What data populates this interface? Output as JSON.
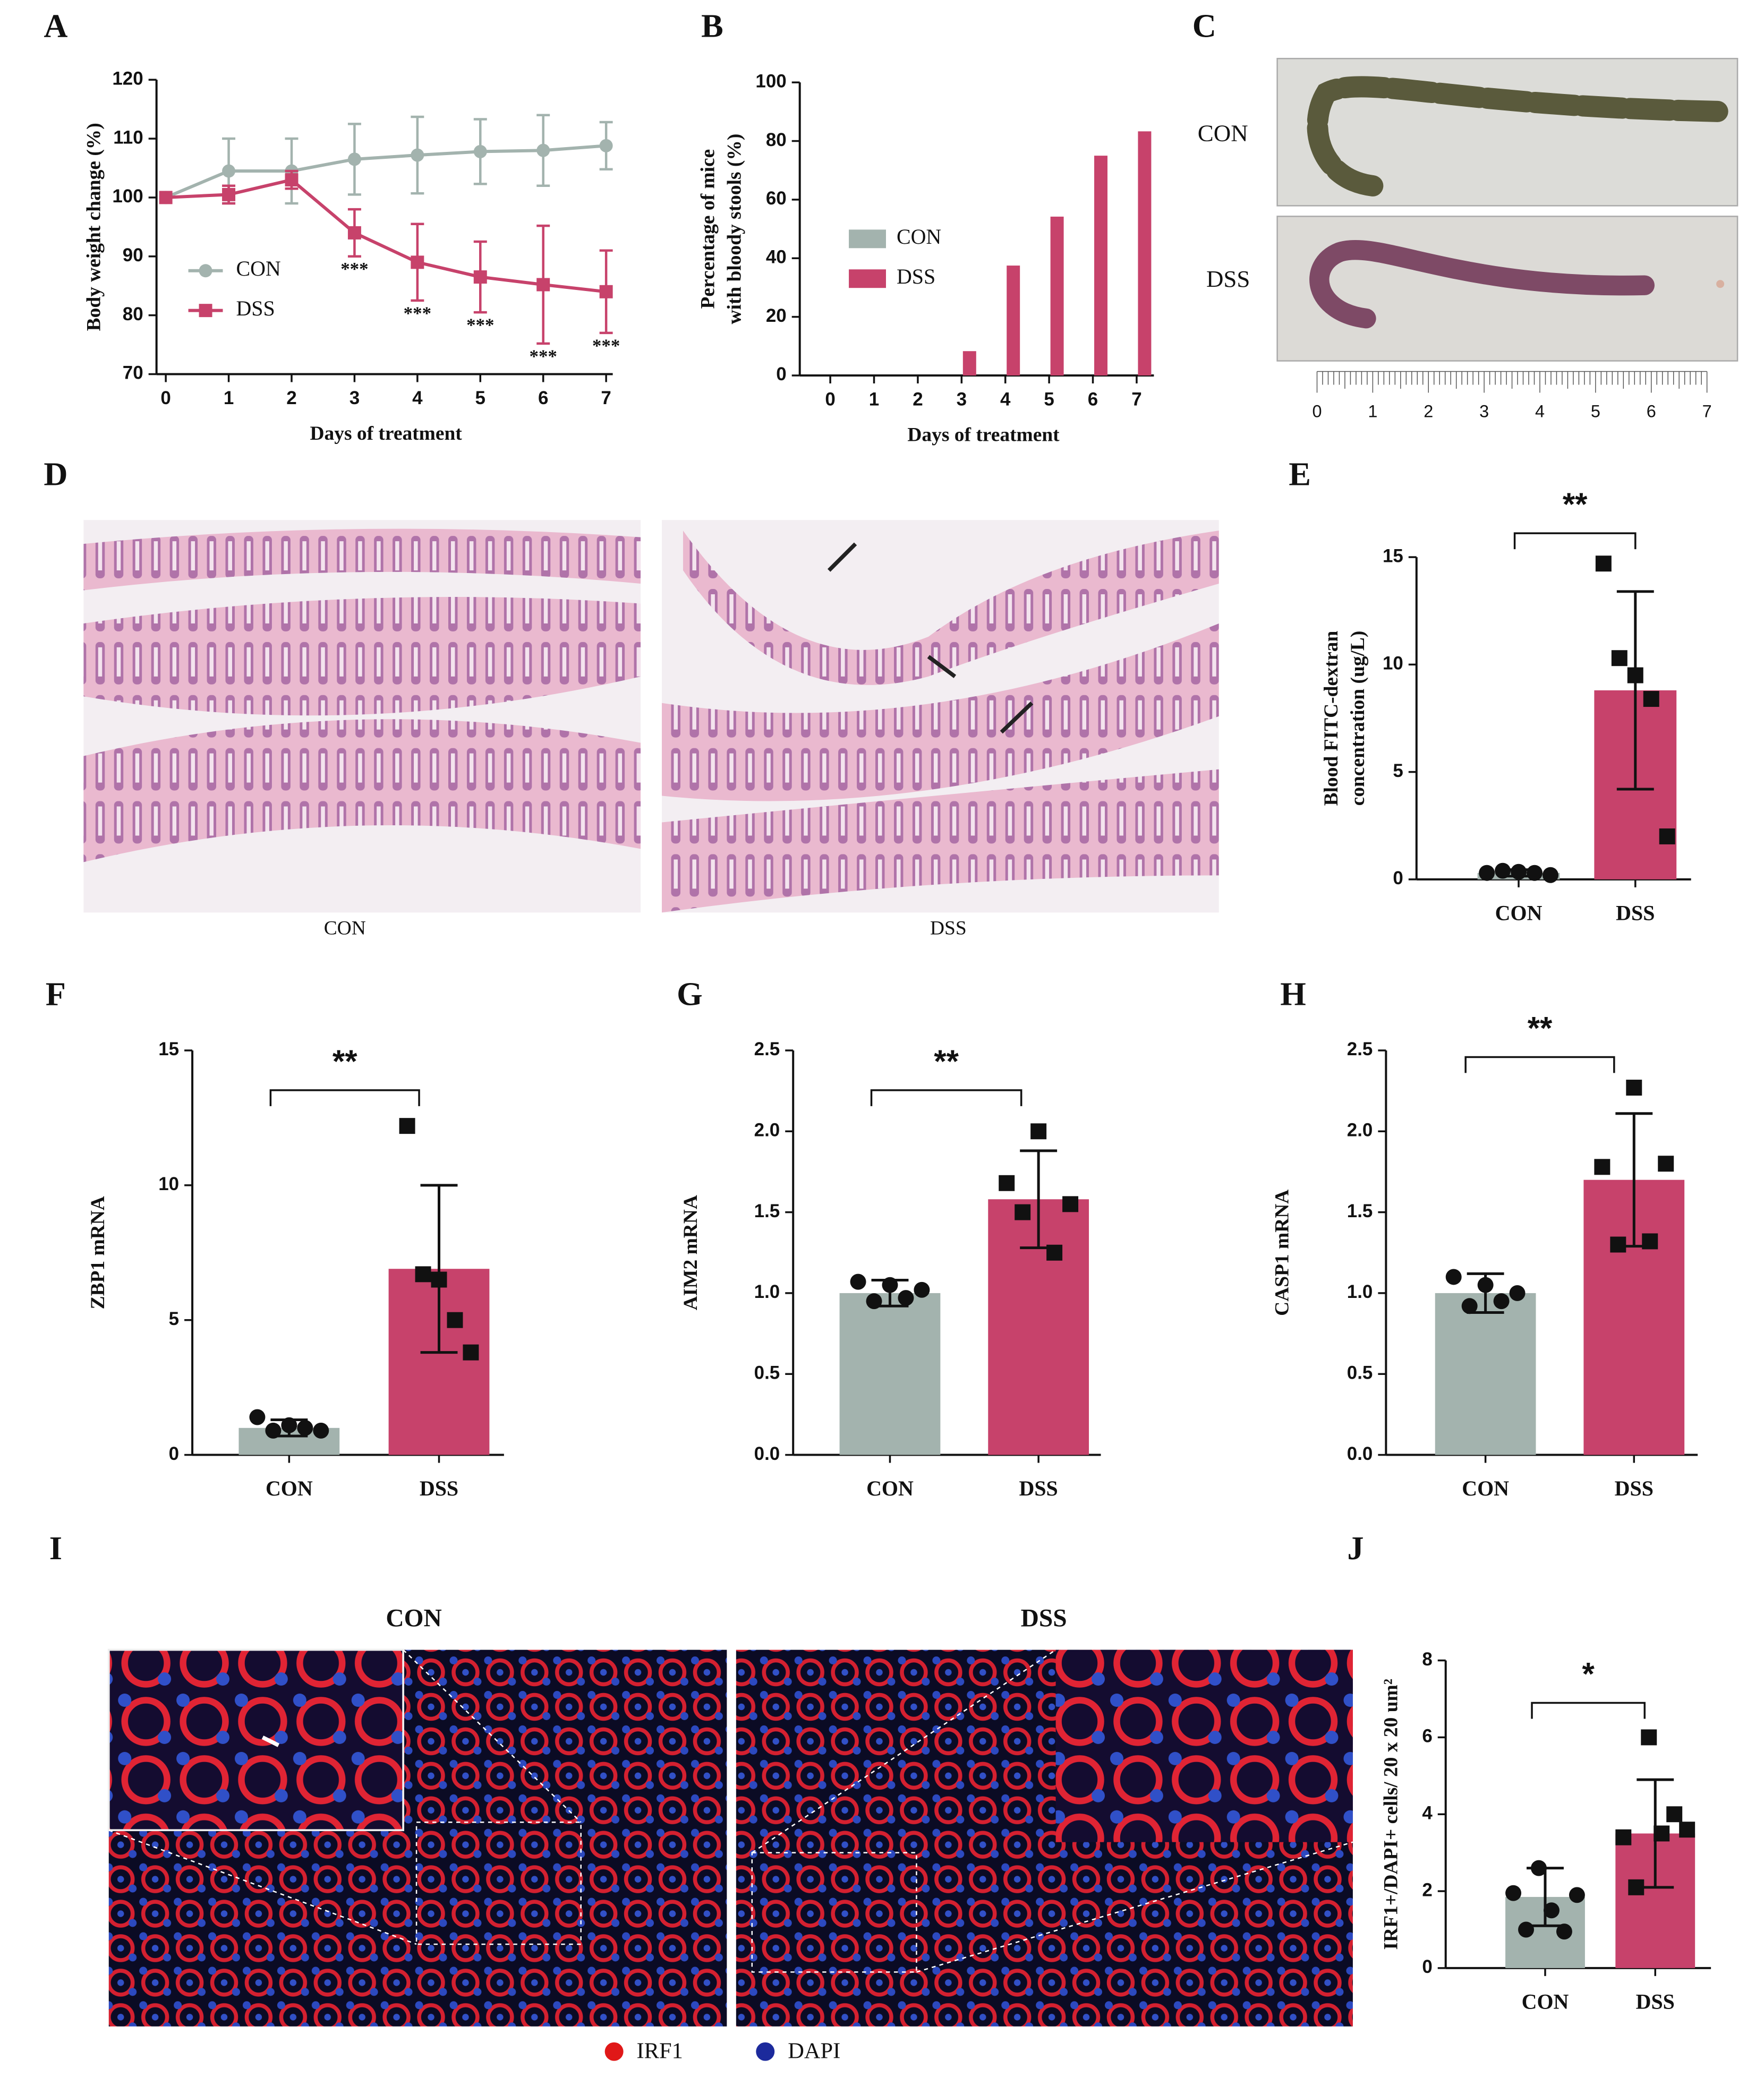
{
  "chart_data": [
    {
      "type": "line",
      "label": "A",
      "xlabel": "Days of treatment",
      "ylabel": "Body weight change (%)",
      "x": [
        0,
        1,
        2,
        3,
        4,
        5,
        6,
        7
      ],
      "xlim": [
        0,
        7
      ],
      "xticks": [
        0,
        1,
        2,
        3,
        4,
        5,
        6,
        7
      ],
      "ylim": [
        70,
        120
      ],
      "yticks": [
        70,
        80,
        90,
        100,
        110,
        120
      ],
      "legend": "lower left",
      "series": [
        {
          "name": "CON",
          "color": "#a3b3ae",
          "marker": "circle",
          "values": [
            100,
            104.5,
            104.5,
            106.5,
            107.2,
            107.8,
            108,
            108.8
          ],
          "errors": [
            0,
            5.5,
            5.5,
            6,
            6.5,
            5.5,
            6,
            4
          ]
        },
        {
          "name": "DSS",
          "color": "#c7426b",
          "marker": "square",
          "values": [
            100,
            100.5,
            103,
            94,
            89,
            86.5,
            85.2,
            84
          ],
          "errors": [
            0,
            1.5,
            1.5,
            4,
            6.5,
            6,
            10,
            7
          ],
          "annotations": [
            null,
            null,
            null,
            "***",
            "***",
            "***",
            "***",
            "***"
          ]
        }
      ]
    },
    {
      "type": "bar",
      "label": "B",
      "xlabel": "Days of treatment",
      "ylabel": [
        "Percentage of mice",
        "with bloody stools (%)"
      ],
      "x": [
        0,
        1,
        2,
        3,
        4,
        5,
        6,
        7
      ],
      "xlim": [
        0,
        7
      ],
      "xticks": [
        0,
        1,
        2,
        3,
        4,
        5,
        6,
        7
      ],
      "ylim": [
        0,
        100
      ],
      "yticks": [
        0,
        20,
        40,
        60,
        80,
        100
      ],
      "legend": "center left",
      "series": [
        {
          "name": "CON",
          "color": "#a3b3ae",
          "values": [
            0,
            0,
            0,
            0,
            0,
            0,
            0,
            0
          ]
        },
        {
          "name": "DSS",
          "color": "#c7426b",
          "values": [
            0,
            0,
            0,
            8.3,
            37.5,
            54.2,
            75,
            83.3
          ]
        }
      ]
    },
    {
      "type": "dotbar",
      "label": "E",
      "ylabel": [
        "Blood FITC-dextran",
        "concentration (ug/L)"
      ],
      "categories": [
        "CON",
        "DSS"
      ],
      "colors": [
        "#a3b3ae",
        "#c7426b"
      ],
      "markers": [
        "circle",
        "square"
      ],
      "values": [
        0.3,
        8.8
      ],
      "errors": [
        0.15,
        4.6
      ],
      "points": [
        [
          0.3,
          0.4,
          0.35,
          0.3,
          0.2
        ],
        [
          14.7,
          10.3,
          9.5,
          8.4,
          2.0
        ]
      ],
      "significance": "**",
      "ylim": [
        0,
        15
      ],
      "yticks": [
        0,
        5,
        10,
        15
      ]
    },
    {
      "type": "dotbar",
      "label": "F",
      "ylabel": "ZBP1 mRNA",
      "categories": [
        "CON",
        "DSS"
      ],
      "colors": [
        "#a3b3ae",
        "#c7426b"
      ],
      "markers": [
        "circle",
        "square"
      ],
      "values": [
        1.0,
        6.9
      ],
      "errors": [
        0.3,
        3.1
      ],
      "points": [
        [
          1.4,
          0.9,
          1.1,
          1.0,
          0.9
        ],
        [
          12.2,
          6.7,
          6.5,
          5.0,
          3.8
        ]
      ],
      "significance": "**",
      "ylim": [
        0,
        15
      ],
      "yticks": [
        0,
        5,
        10,
        15
      ]
    },
    {
      "type": "dotbar",
      "label": "G",
      "ylabel": "AIM2 mRNA",
      "categories": [
        "CON",
        "DSS"
      ],
      "colors": [
        "#a3b3ae",
        "#c7426b"
      ],
      "markers": [
        "circle",
        "square"
      ],
      "values": [
        1.0,
        1.58
      ],
      "errors": [
        0.08,
        0.3
      ],
      "points": [
        [
          1.07,
          0.95,
          1.05,
          0.97,
          1.02
        ],
        [
          1.68,
          1.5,
          2.0,
          1.25,
          1.55
        ]
      ],
      "significance": "**",
      "ylim": [
        0,
        2.5
      ],
      "yticks": [
        {
          "value": 0,
          "label": "0.0"
        },
        0.5,
        {
          "value": 1,
          "label": "1.0"
        },
        1.5,
        {
          "value": 2,
          "label": "2.0"
        },
        2.5
      ]
    },
    {
      "type": "dotbar",
      "label": "H",
      "ylabel": "CASP1 mRNA",
      "categories": [
        "CON",
        "DSS"
      ],
      "colors": [
        "#a3b3ae",
        "#c7426b"
      ],
      "markers": [
        "circle",
        "square"
      ],
      "values": [
        1.0,
        1.7
      ],
      "errors": [
        0.12,
        0.41
      ],
      "points": [
        [
          1.1,
          0.92,
          1.05,
          0.95,
          1.0
        ],
        [
          1.78,
          1.3,
          2.27,
          1.32,
          1.8
        ]
      ],
      "significance": "**",
      "ylim": [
        0,
        2.5
      ],
      "yticks": [
        {
          "value": 0,
          "label": "0.0"
        },
        0.5,
        {
          "value": 1,
          "label": "1.0"
        },
        1.5,
        {
          "value": 2,
          "label": "2.0"
        },
        2.5
      ]
    },
    {
      "type": "dotbar",
      "label": "J",
      "ylabel": "IRF1+/DAPI+ cells/ 20 x 20 um²",
      "categories": [
        "CON",
        "DSS"
      ],
      "colors": [
        "#a3b3ae",
        "#c7426b"
      ],
      "markers": [
        "circle",
        "square"
      ],
      "values": [
        1.85,
        3.5
      ],
      "errors": [
        0.75,
        1.4
      ],
      "points": [
        [
          1.95,
          1.0,
          2.6,
          1.5,
          0.95,
          1.9
        ],
        [
          3.4,
          2.1,
          6.0,
          3.5,
          4.0,
          3.6
        ]
      ],
      "significance": "*",
      "ylim": [
        0,
        8
      ],
      "yticks": [
        0,
        2,
        4,
        6,
        8
      ]
    }
  ],
  "images": {
    "c": {
      "label": "C",
      "rows": [
        "CON",
        "DSS"
      ],
      "scale": [
        0,
        1,
        2,
        3,
        4,
        5,
        6,
        7
      ]
    },
    "d": {
      "label": "D",
      "captions": [
        "CON",
        "DSS"
      ]
    },
    "i": {
      "label": "I",
      "captions": [
        "CON",
        "DSS"
      ],
      "legend": [
        "IRF1",
        "DAPI"
      ]
    }
  }
}
